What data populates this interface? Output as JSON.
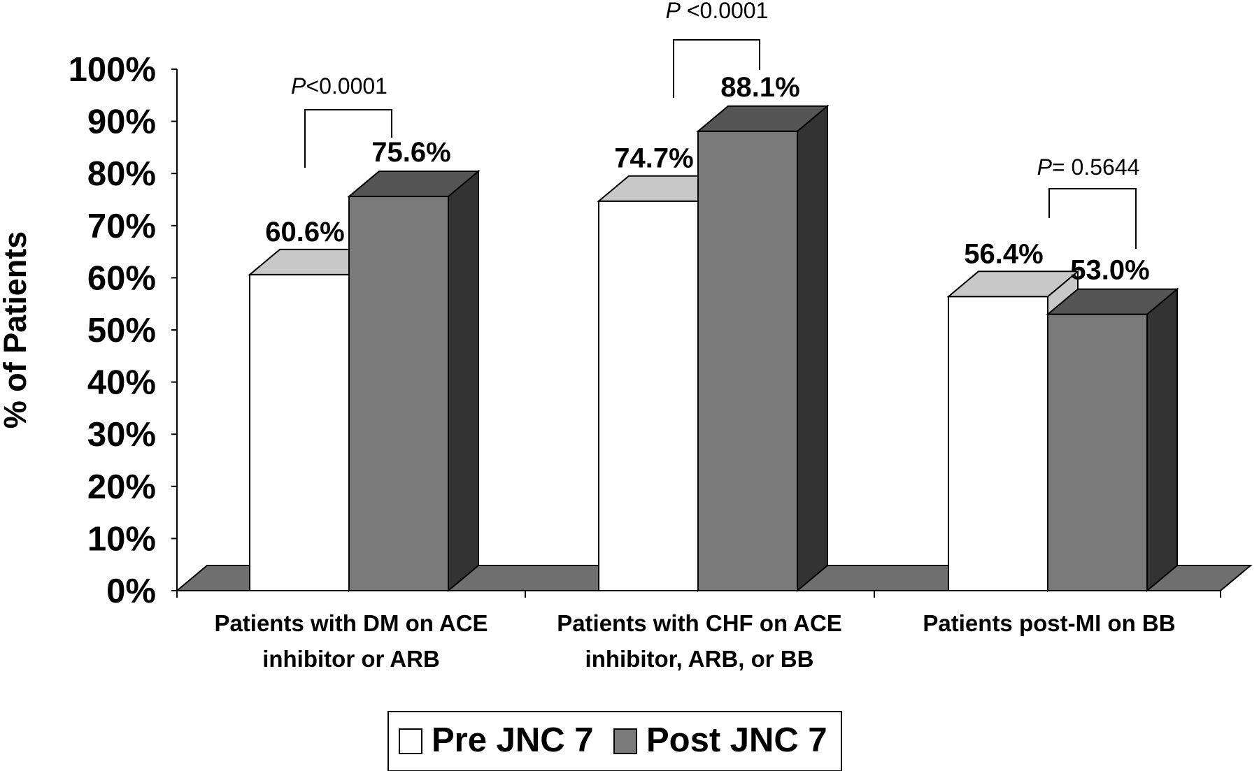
{
  "chart_data": {
    "type": "bar",
    "ylabel": "% of Patients",
    "ylim": [
      0,
      100
    ],
    "yticks": [
      "0%",
      "10%",
      "20%",
      "30%",
      "40%",
      "50%",
      "60%",
      "70%",
      "80%",
      "90%",
      "100%"
    ],
    "categories": [
      [
        "Patients with DM on ACE",
        "inhibitor or ARB"
      ],
      [
        "Patients with CHF on ACE",
        "inhibitor, ARB, or BB"
      ],
      [
        "Patients post-MI on BB"
      ]
    ],
    "series": [
      {
        "name": "Pre JNC 7",
        "values": [
          60.6,
          74.7,
          56.4
        ],
        "labels": [
          "60.6%",
          "74.7%",
          "56.4%"
        ]
      },
      {
        "name": "Post JNC 7",
        "values": [
          75.6,
          88.1,
          53.0
        ],
        "labels": [
          "75.6%",
          "88.1%",
          "53.0%"
        ]
      }
    ],
    "pvalues": [
      {
        "italic": "P",
        "rest": "<0.0001"
      },
      {
        "italic": "P",
        "rest": " <0.0001"
      },
      {
        "italic": "P",
        "rest": "= 0.5644"
      }
    ],
    "legend_position": "bottom-center",
    "grid": false,
    "colors": {
      "pre_face": "#ffffff",
      "pre_top": "#c8c8c8",
      "post_face": "#7a7a7a",
      "post_top": "#555555",
      "post_side": "#333333",
      "floor": "#6f6f6f"
    }
  }
}
